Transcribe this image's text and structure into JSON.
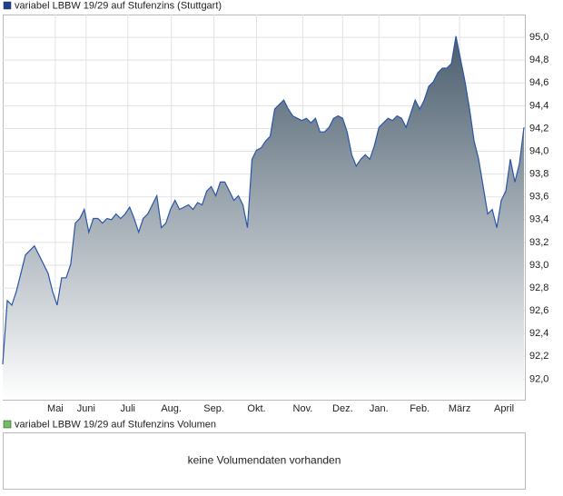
{
  "chart_data": [
    {
      "type": "area",
      "title": "variabel LBBW 19/29 auf Stufenzins (Stuttgart)",
      "legend_color": "#1f3f8f",
      "color": "#2a56a8",
      "fill_top": "#4a5d6d",
      "fill_bottom": "#ffffff",
      "grid": true,
      "xlim": [
        0,
        115
      ],
      "xticks": [
        {
          "value": 11.6,
          "label": "Mai"
        },
        {
          "value": 18.4,
          "label": "Juni"
        },
        {
          "value": 27.6,
          "label": "Juli"
        },
        {
          "value": 37.2,
          "label": "Aug."
        },
        {
          "value": 46.6,
          "label": "Sep."
        },
        {
          "value": 56,
          "label": "Okt."
        },
        {
          "value": 66.2,
          "label": "Nov."
        },
        {
          "value": 75,
          "label": "Dez."
        },
        {
          "value": 83,
          "label": "Jan."
        },
        {
          "value": 92,
          "label": "Feb."
        },
        {
          "value": 100.8,
          "label": "März"
        },
        {
          "value": 110.6,
          "label": "April"
        }
      ],
      "ylim": [
        91.82,
        95.2
      ],
      "yticks": [
        {
          "value": 92.0,
          "label": "92,0"
        },
        {
          "value": 92.2,
          "label": "92,2"
        },
        {
          "value": 92.4,
          "label": "92,4"
        },
        {
          "value": 92.6,
          "label": "92,6"
        },
        {
          "value": 92.8,
          "label": "92,8"
        },
        {
          "value": 93.0,
          "label": "93,0"
        },
        {
          "value": 93.2,
          "label": "93,2"
        },
        {
          "value": 93.4,
          "label": "93,4"
        },
        {
          "value": 93.6,
          "label": "93,6"
        },
        {
          "value": 93.8,
          "label": "93,8"
        },
        {
          "value": 94.0,
          "label": "94,0"
        },
        {
          "value": 94.2,
          "label": "94,2"
        },
        {
          "value": 94.4,
          "label": "94,4"
        },
        {
          "value": 94.6,
          "label": "94,6"
        },
        {
          "value": 94.8,
          "label": "94,8"
        },
        {
          "value": 95.0,
          "label": "95,0"
        }
      ],
      "values": [
        92.13,
        92.69,
        92.65,
        92.77,
        92.93,
        93.09,
        93.13,
        93.17,
        93.09,
        93.01,
        92.93,
        92.77,
        92.65,
        92.89,
        92.89,
        93.01,
        93.37,
        93.41,
        93.49,
        93.29,
        93.41,
        93.41,
        93.37,
        93.41,
        93.4,
        93.45,
        93.41,
        93.45,
        93.51,
        93.41,
        93.29,
        93.41,
        93.45,
        93.53,
        93.61,
        93.33,
        93.37,
        93.49,
        93.57,
        93.49,
        93.51,
        93.53,
        93.49,
        93.55,
        93.53,
        93.65,
        93.69,
        93.61,
        93.73,
        93.73,
        93.65,
        93.57,
        93.61,
        93.53,
        93.33,
        93.93,
        94.01,
        94.03,
        94.09,
        94.13,
        94.37,
        94.41,
        94.45,
        94.37,
        94.31,
        94.29,
        94.27,
        94.29,
        94.25,
        94.29,
        94.17,
        94.17,
        94.21,
        94.29,
        94.31,
        94.29,
        94.17,
        93.97,
        93.87,
        93.93,
        93.97,
        93.93,
        94.05,
        94.21,
        94.25,
        94.29,
        94.27,
        94.31,
        94.29,
        94.21,
        94.33,
        94.45,
        94.37,
        94.45,
        94.57,
        94.61,
        94.69,
        94.73,
        94.73,
        94.77,
        95.01,
        94.81,
        94.61,
        94.37,
        94.09,
        93.93,
        93.69,
        93.45,
        93.49,
        93.33,
        93.57,
        93.65,
        93.93,
        93.73,
        93.89,
        94.21
      ]
    },
    {
      "type": "volume",
      "title": "variabel LBBW 19/29 auf Stufenzins Volumen",
      "legend_color": "#6fbf5f",
      "message": "keine Volumendaten vorhanden"
    }
  ]
}
